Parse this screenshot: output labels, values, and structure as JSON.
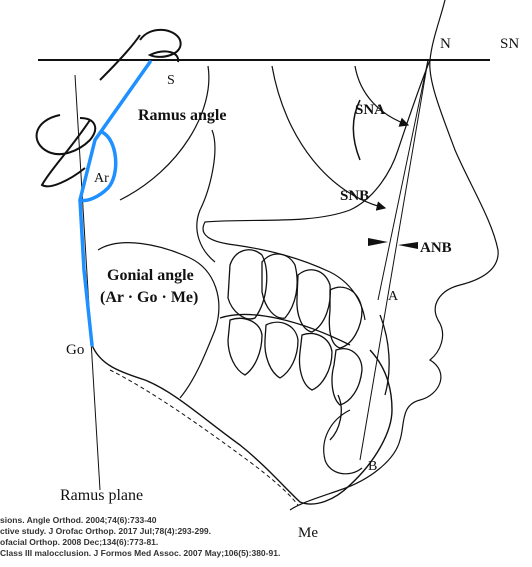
{
  "labels": {
    "N": "N",
    "SN": "SN",
    "S": "S",
    "ramus_angle": "Ramus angle",
    "SNA": "SNA",
    "SNB": "SNB",
    "ANB": "ANB",
    "Ar": "Ar",
    "gonial_angle_line1": "Gonial angle",
    "gonial_angle_line2": "(Ar · Go · Me)",
    "A": "A",
    "Go": "Go",
    "B": "B",
    "Me": "Me",
    "ramus_plane": "Ramus plane"
  },
  "references": [
    "sions. Angle Orthod. 2004;74(6):733-40",
    "ctive study. J Orofac Orthop. 2017 Jul;78(4):293-299.",
    "ofacial Orthop. 2008 Dec;134(6):773-81.",
    "Class III malocclusion. J Formos Med Assoc. 2007 May;106(5):380-91."
  ],
  "colors": {
    "ink": "#111111",
    "highlight": "#1e90ff"
  }
}
